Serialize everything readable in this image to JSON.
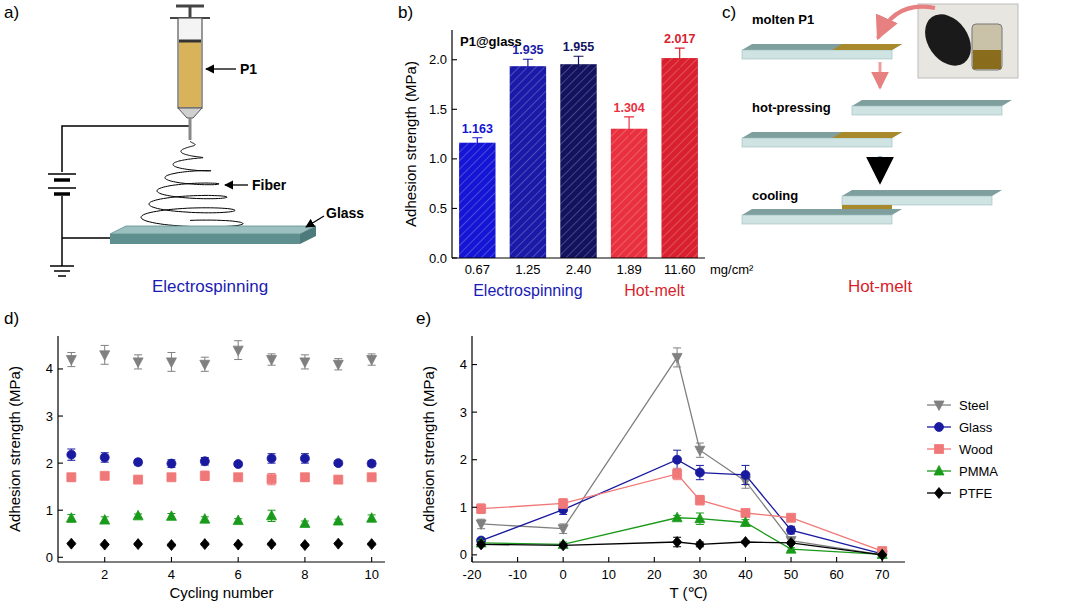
{
  "panel_labels": [
    "a)",
    "b)",
    "c)",
    "d)",
    "e)"
  ],
  "diagrams": {
    "electrospinning": {
      "labels": [
        "P1",
        "Fiber",
        "Glass"
      ],
      "caption": "Electrospinning"
    },
    "hot_melt": {
      "steps": [
        "molten P1",
        "hot-pressing",
        "cooling"
      ],
      "caption": "Hot-melt"
    }
  },
  "chart_data": [
    {
      "type": "bar",
      "y_label": "Adhesion strength (MPa)",
      "x_label": "mg/cm²",
      "annotations": [
        "P1@glass",
        "Electrospinning",
        "Hot-melt"
      ],
      "categories": [
        "0.67",
        "1.25",
        "2.40",
        "1.89",
        "11.60"
      ],
      "values": [
        1.163,
        1.935,
        1.955,
        1.304,
        2.017
      ],
      "errors": [
        0.05,
        0.07,
        0.08,
        0.12,
        0.1
      ],
      "colors": [
        "#1515d6",
        "#1a1aa8",
        "#12125e",
        "#e8303f",
        "#d9202e"
      ],
      "data_labels": true,
      "ylim": [
        0,
        2.3
      ],
      "yticks": [
        {
          "value": 0,
          "label": "0.0"
        },
        {
          "value": 0.5,
          "label": "0.5"
        },
        {
          "value": 1,
          "label": "1.0"
        },
        {
          "value": 1.5,
          "label": "1.5"
        },
        {
          "value": 2,
          "label": "2.0"
        }
      ]
    },
    {
      "type": "scatter",
      "x_label": "Cycling number",
      "y_label": "Adhesion strength (MPa)",
      "x": [
        1,
        2,
        3,
        4,
        5,
        6,
        7,
        8,
        9,
        10
      ],
      "series": [
        {
          "color": "#808080",
          "marker": "triangle-down",
          "values": [
            4.2,
            4.3,
            4.15,
            4.15,
            4.1,
            4.4,
            4.2,
            4.15,
            4.1,
            4.2
          ],
          "errors": [
            0.15,
            0.2,
            0.15,
            0.2,
            0.15,
            0.2,
            0.12,
            0.15,
            0.12,
            0.12
          ]
        },
        {
          "color": "#1a1aa0",
          "marker": "circle",
          "values": [
            2.18,
            2.12,
            2.02,
            1.99,
            2.04,
            1.98,
            2.1,
            2.1,
            2.0,
            1.99
          ],
          "errors": [
            0.12,
            0.1,
            0.06,
            0.08,
            0.08,
            0.05,
            0.1,
            0.1,
            0.05,
            0.06
          ]
        },
        {
          "color": "#f07878",
          "marker": "square",
          "values": [
            1.7,
            1.73,
            1.65,
            1.7,
            1.73,
            1.7,
            1.66,
            1.7,
            1.65,
            1.7
          ],
          "errors": [
            0.08,
            0.05,
            0.06,
            0.06,
            0.1,
            0.06,
            0.12,
            0.08,
            0.06,
            0.06
          ]
        },
        {
          "color": "#1a9a1a",
          "marker": "triangle-up",
          "values": [
            0.83,
            0.79,
            0.88,
            0.87,
            0.81,
            0.78,
            0.88,
            0.72,
            0.77,
            0.83
          ],
          "errors": [
            0.08,
            0.07,
            0.04,
            0.06,
            0.05,
            0.04,
            0.12,
            0.05,
            0.04,
            0.07
          ]
        },
        {
          "color": "#000000",
          "marker": "diamond",
          "values": [
            0.29,
            0.27,
            0.28,
            0.26,
            0.28,
            0.27,
            0.28,
            0.26,
            0.29,
            0.28
          ],
          "errors": [
            0.02,
            0.02,
            0.02,
            0.02,
            0.02,
            0.02,
            0.02,
            0.02,
            0.02,
            0.02
          ]
        }
      ],
      "xlim": [
        0.6,
        10.4
      ],
      "xticks": [
        2,
        4,
        6,
        8,
        10
      ],
      "ylim": [
        -0.1,
        4.7
      ],
      "yticks": [
        0,
        1,
        2,
        3,
        4
      ]
    },
    {
      "type": "line",
      "x_label": "T (℃)",
      "y_label": "Adhesion strength (MPa)",
      "x": [
        -18,
        0,
        25,
        30,
        40,
        50,
        70
      ],
      "series": [
        {
          "name": "Steel",
          "color": "#808080",
          "marker": "triangle-down",
          "values": [
            0.65,
            0.55,
            4.15,
            2.2,
            1.55,
            0.3,
            0.0
          ],
          "errors": [
            0.1,
            0.1,
            0.2,
            0.15,
            0.15,
            0.05,
            0.03
          ]
        },
        {
          "name": "Glass",
          "color": "#1a1aa0",
          "marker": "circle",
          "values": [
            0.3,
            0.95,
            2.0,
            1.73,
            1.68,
            0.52,
            0.02
          ],
          "errors": [
            0.05,
            0.1,
            0.2,
            0.15,
            0.2,
            0.08,
            0.02
          ]
        },
        {
          "name": "Wood",
          "color": "#f07878",
          "marker": "square",
          "values": [
            0.97,
            1.08,
            1.7,
            1.15,
            0.88,
            0.78,
            0.08
          ],
          "errors": [
            0.1,
            0.1,
            0.12,
            0.1,
            0.05,
            0.05,
            0.02
          ]
        },
        {
          "name": "PMMA",
          "color": "#1a9a1a",
          "marker": "triangle-up",
          "values": [
            0.25,
            0.22,
            0.78,
            0.76,
            0.68,
            0.12,
            0.01
          ],
          "errors": [
            0.05,
            0.05,
            0.05,
            0.12,
            0.06,
            0.03,
            0.01
          ]
        },
        {
          "name": "PTFE",
          "color": "#000000",
          "marker": "diamond",
          "values": [
            0.22,
            0.2,
            0.27,
            0.22,
            0.27,
            0.25,
            0.0
          ],
          "errors": [
            0.03,
            0.03,
            0.1,
            0.05,
            0.03,
            0.03,
            0.01
          ]
        }
      ],
      "legend": "right",
      "xlim": [
        -20,
        75
      ],
      "xticks": [
        -20,
        -10,
        0,
        10,
        20,
        30,
        40,
        50,
        60,
        70
      ],
      "ylim": [
        -0.15,
        4.6
      ],
      "yticks": [
        0,
        1,
        2,
        3,
        4
      ]
    }
  ]
}
